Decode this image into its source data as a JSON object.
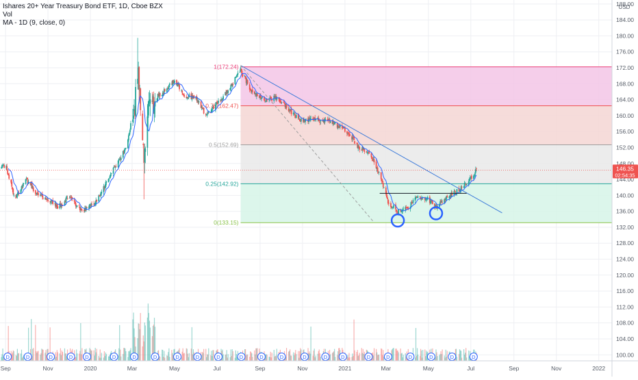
{
  "legend": {
    "title": "Ishares 20+ Year Treasury Bond ETF, 1D, Cboe BZX",
    "vol": "Vol",
    "ma": "MA - 1D (9, close, 0)"
  },
  "chart_data": {
    "type": "candlestick",
    "currency": "USD",
    "y_ticks": [
      100,
      104,
      108,
      112,
      116,
      120,
      124,
      128,
      132,
      136,
      140,
      144,
      148,
      152,
      156,
      160,
      164,
      168,
      172,
      176,
      180,
      184,
      188
    ],
    "ylim": [
      98.5,
      189
    ],
    "x_ticks": [
      {
        "label": "Sep",
        "date": "2019-09-01"
      },
      {
        "label": "Nov",
        "date": "2019-11-01"
      },
      {
        "label": "2020",
        "date": "2020-01-01"
      },
      {
        "label": "Mar",
        "date": "2020-03-01"
      },
      {
        "label": "May",
        "date": "2020-05-01"
      },
      {
        "label": "Jul",
        "date": "2020-07-01"
      },
      {
        "label": "Sep",
        "date": "2020-09-01"
      },
      {
        "label": "Nov",
        "date": "2020-11-01"
      },
      {
        "label": "2021",
        "date": "2021-01-01"
      },
      {
        "label": "Mar",
        "date": "2021-03-01"
      },
      {
        "label": "May",
        "date": "2021-05-01"
      },
      {
        "label": "Jul",
        "date": "2021-07-01"
      },
      {
        "label": "Sep",
        "date": "2021-09-01"
      },
      {
        "label": "Nov",
        "date": "2021-11-01"
      },
      {
        "label": "2022",
        "date": "2022-01-01"
      }
    ],
    "xlim": [
      "2019-08-24",
      "2022-01-20"
    ],
    "last_price": {
      "value": "146.35",
      "time": "02:54:35",
      "y": 146.35
    },
    "fib_levels": [
      {
        "label": "1(172.24)",
        "value": 172.24,
        "color": "#ec407a"
      },
      {
        "label": "0.75(162.47)",
        "value": 162.47,
        "color": "#ef5350"
      },
      {
        "label": "0.5(152.69)",
        "value": 152.69,
        "color": "#9e9e9e"
      },
      {
        "label": "0.25(142.92)",
        "value": 142.92,
        "color": "#26a69a"
      },
      {
        "label": "0(133.15)",
        "value": 133.15,
        "color": "#8bc34a"
      }
    ],
    "fib_zones": [
      {
        "from": 162.47,
        "to": 172.24,
        "color": "#f3c6e6"
      },
      {
        "from": 152.69,
        "to": 162.47,
        "color": "#f4d6d3"
      },
      {
        "from": 142.92,
        "to": 152.69,
        "color": "#e9e9e9"
      },
      {
        "from": 133.15,
        "to": 142.92,
        "color": "#d6f4e8"
      }
    ],
    "fib_range": [
      "2020-08-04",
      "2022-01-20"
    ],
    "trendline": {
      "from": {
        "date": "2020-08-04",
        "value": 172.6
      },
      "to": {
        "date": "2021-08-15",
        "value": 135.6
      },
      "color": "#3d7bd9"
    },
    "dashed_line": {
      "from": {
        "date": "2020-08-04",
        "value": 172.6
      },
      "to": {
        "date": "2021-02-10",
        "value": 133.6
      },
      "color": "#9e9e9e"
    },
    "support_line": {
      "from": {
        "date": "2021-02-20",
        "value": 140.5
      },
      "to": {
        "date": "2021-06-25",
        "value": 140.5
      },
      "color": "#131722"
    },
    "circles": [
      {
        "date": "2021-03-18",
        "value": 133.7
      },
      {
        "date": "2021-05-12",
        "value": 135.5
      }
    ],
    "dividend_marker": "D",
    "dividend_dates": [
      "2019-09-04",
      "2019-10-03",
      "2019-11-05",
      "2019-12-04",
      "2019-12-27",
      "2020-02-04",
      "2020-03-04",
      "2020-04-03",
      "2020-05-05",
      "2020-06-03",
      "2020-07-03",
      "2020-08-05",
      "2020-09-03",
      "2020-10-02",
      "2020-11-04",
      "2020-12-04",
      "2020-12-29",
      "2021-02-04",
      "2021-03-04",
      "2021-04-05",
      "2021-05-05",
      "2021-06-04",
      "2021-07-05"
    ],
    "price_path": [
      {
        "date": "2019-08-24",
        "value": 147.0
      },
      {
        "date": "2019-09-01",
        "value": 147.5
      },
      {
        "date": "2019-09-15",
        "value": 139.0
      },
      {
        "date": "2019-10-01",
        "value": 144.0
      },
      {
        "date": "2019-10-15",
        "value": 140.5
      },
      {
        "date": "2019-11-01",
        "value": 139.0
      },
      {
        "date": "2019-11-15",
        "value": 137.0
      },
      {
        "date": "2019-12-01",
        "value": 139.5
      },
      {
        "date": "2019-12-20",
        "value": 136.0
      },
      {
        "date": "2020-01-10",
        "value": 138.5
      },
      {
        "date": "2020-01-31",
        "value": 145.5
      },
      {
        "date": "2020-02-20",
        "value": 151.5
      },
      {
        "date": "2020-03-05",
        "value": 162.0
      },
      {
        "date": "2020-03-09",
        "value": 172.0
      },
      {
        "date": "2020-03-18",
        "value": 150.0
      },
      {
        "date": "2020-03-25",
        "value": 163.0
      },
      {
        "date": "2020-04-15",
        "value": 166.0
      },
      {
        "date": "2020-05-01",
        "value": 169.0
      },
      {
        "date": "2020-05-15",
        "value": 165.0
      },
      {
        "date": "2020-06-01",
        "value": 164.5
      },
      {
        "date": "2020-06-15",
        "value": 160.0
      },
      {
        "date": "2020-07-01",
        "value": 163.0
      },
      {
        "date": "2020-07-20",
        "value": 167.0
      },
      {
        "date": "2020-08-04",
        "value": 171.5
      },
      {
        "date": "2020-08-20",
        "value": 166.0
      },
      {
        "date": "2020-09-05",
        "value": 164.0
      },
      {
        "date": "2020-09-25",
        "value": 164.5
      },
      {
        "date": "2020-10-15",
        "value": 161.0
      },
      {
        "date": "2020-11-01",
        "value": 158.5
      },
      {
        "date": "2020-11-20",
        "value": 159.0
      },
      {
        "date": "2020-12-10",
        "value": 158.5
      },
      {
        "date": "2021-01-05",
        "value": 156.0
      },
      {
        "date": "2021-01-20",
        "value": 152.0
      },
      {
        "date": "2021-02-05",
        "value": 151.0
      },
      {
        "date": "2021-02-20",
        "value": 145.0
      },
      {
        "date": "2021-03-05",
        "value": 138.0
      },
      {
        "date": "2021-03-18",
        "value": 136.0
      },
      {
        "date": "2021-04-01",
        "value": 137.0
      },
      {
        "date": "2021-04-15",
        "value": 139.5
      },
      {
        "date": "2021-05-01",
        "value": 139.0
      },
      {
        "date": "2021-05-12",
        "value": 137.0
      },
      {
        "date": "2021-05-25",
        "value": 139.0
      },
      {
        "date": "2021-06-10",
        "value": 141.0
      },
      {
        "date": "2021-06-25",
        "value": 143.0
      },
      {
        "date": "2021-07-09",
        "value": 146.35
      }
    ],
    "ma_period": 9,
    "colors": {
      "up": "#26a69a",
      "down": "#ef5350",
      "ma": "#2962ff",
      "axis_text": "#555b66",
      "grid": "#eeeff3",
      "price_tag": "#ef5350"
    }
  }
}
